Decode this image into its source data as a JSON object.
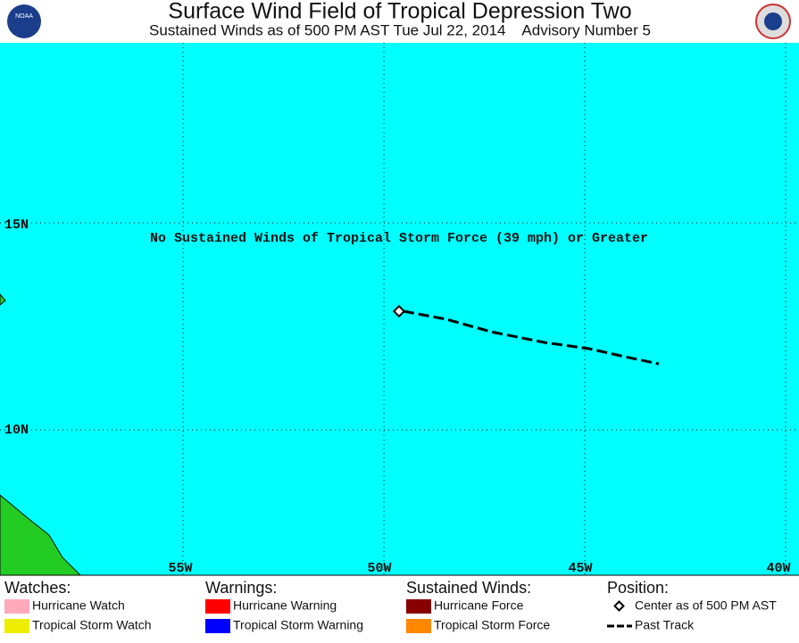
{
  "header": {
    "title": "Surface Wind Field of Tropical Depression Two",
    "subtitle": "Sustained Winds as of 500 PM AST Tue Jul 22, 2014    Advisory Number 5",
    "left_logo": "NOAA"
  },
  "map": {
    "note": "No Sustained Winds of Tropical Storm Force (39 mph) or Greater",
    "lat_labels": [
      "15N",
      "10N"
    ],
    "lon_labels": [
      "55W",
      "50W",
      "45W",
      "40W"
    ]
  },
  "legend": {
    "columns": [
      {
        "heading": "Watches:",
        "items": [
          {
            "label": "Hurricane Watch",
            "color": "#ffaabb"
          },
          {
            "label": "Tropical Storm Watch",
            "color": "#eeee00"
          }
        ]
      },
      {
        "heading": "Warnings:",
        "items": [
          {
            "label": "Hurricane Warning",
            "color": "#ff0000"
          },
          {
            "label": "Tropical Storm Warning",
            "color": "#0000ff"
          }
        ]
      },
      {
        "heading": "Sustained Winds:",
        "items": [
          {
            "label": "Hurricane Force",
            "color": "#880000"
          },
          {
            "label": "Tropical Storm Force",
            "color": "#ff8800"
          }
        ]
      },
      {
        "heading": "Position:",
        "items": [
          {
            "label": "Center as of 500 PM AST"
          },
          {
            "label": "Past Track"
          }
        ]
      }
    ]
  }
}
